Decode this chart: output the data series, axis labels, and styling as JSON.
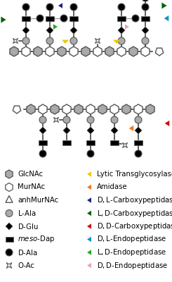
{
  "bg_color": "#ffffff",
  "gc": "#aaaaaa",
  "bk": "black",
  "eg": "#555555",
  "leg_left_labels": [
    "GlcNAc",
    "MurNAc",
    "anhMurNAc",
    "L-Ala",
    "D-Glu",
    "meso-Dap",
    "D-Ala",
    "O-Ac"
  ],
  "leg_right_labels": [
    "Lytic Transglycosylase",
    "Amidase",
    "D,L-Carboxypeptidase",
    "L,D-Carboxypeptidase",
    "D,D-Carboxypeptidase",
    "D,L-Endopeptidase",
    "L,D-Endopeptidase",
    "D,D-Endopeptidase"
  ],
  "leg_right_colors": [
    "#f0c800",
    "#f07820",
    "#1a2080",
    "#006400",
    "#cc1010",
    "#1090cc",
    "#22aa22",
    "#f0a0b0"
  ],
  "hex_r": 7,
  "lw_line": 1.1
}
